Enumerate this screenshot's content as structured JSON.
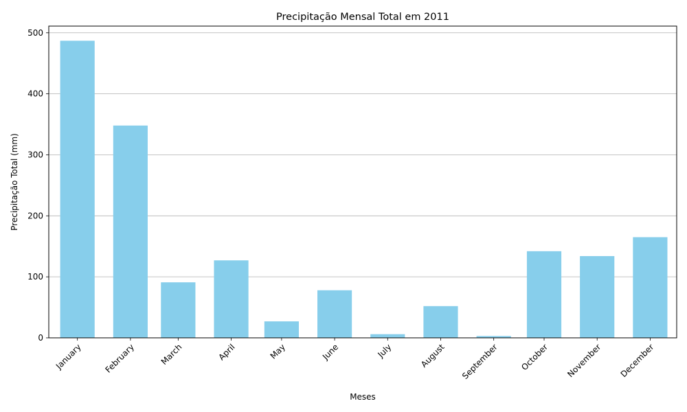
{
  "chart_data": {
    "type": "bar",
    "title": "Precipitação Mensal Total em 2011",
    "xlabel": "Meses",
    "ylabel": "Precipitação Total (mm)",
    "categories": [
      "January",
      "February",
      "March",
      "April",
      "May",
      "June",
      "July",
      "August",
      "September",
      "October",
      "November",
      "December"
    ],
    "x": [
      1,
      2,
      2.9,
      3.9,
      4.85,
      5.85,
      6.85,
      7.85,
      8.85,
      9.8,
      10.8,
      11.8
    ],
    "values": [
      487,
      348,
      91,
      127,
      27,
      78,
      6,
      52,
      3,
      142,
      134,
      165
    ],
    "ylim": [
      0,
      511
    ],
    "yticks": [
      0,
      100,
      200,
      300,
      400,
      500
    ],
    "grid": "y",
    "bar_color": "#87ceeb"
  }
}
